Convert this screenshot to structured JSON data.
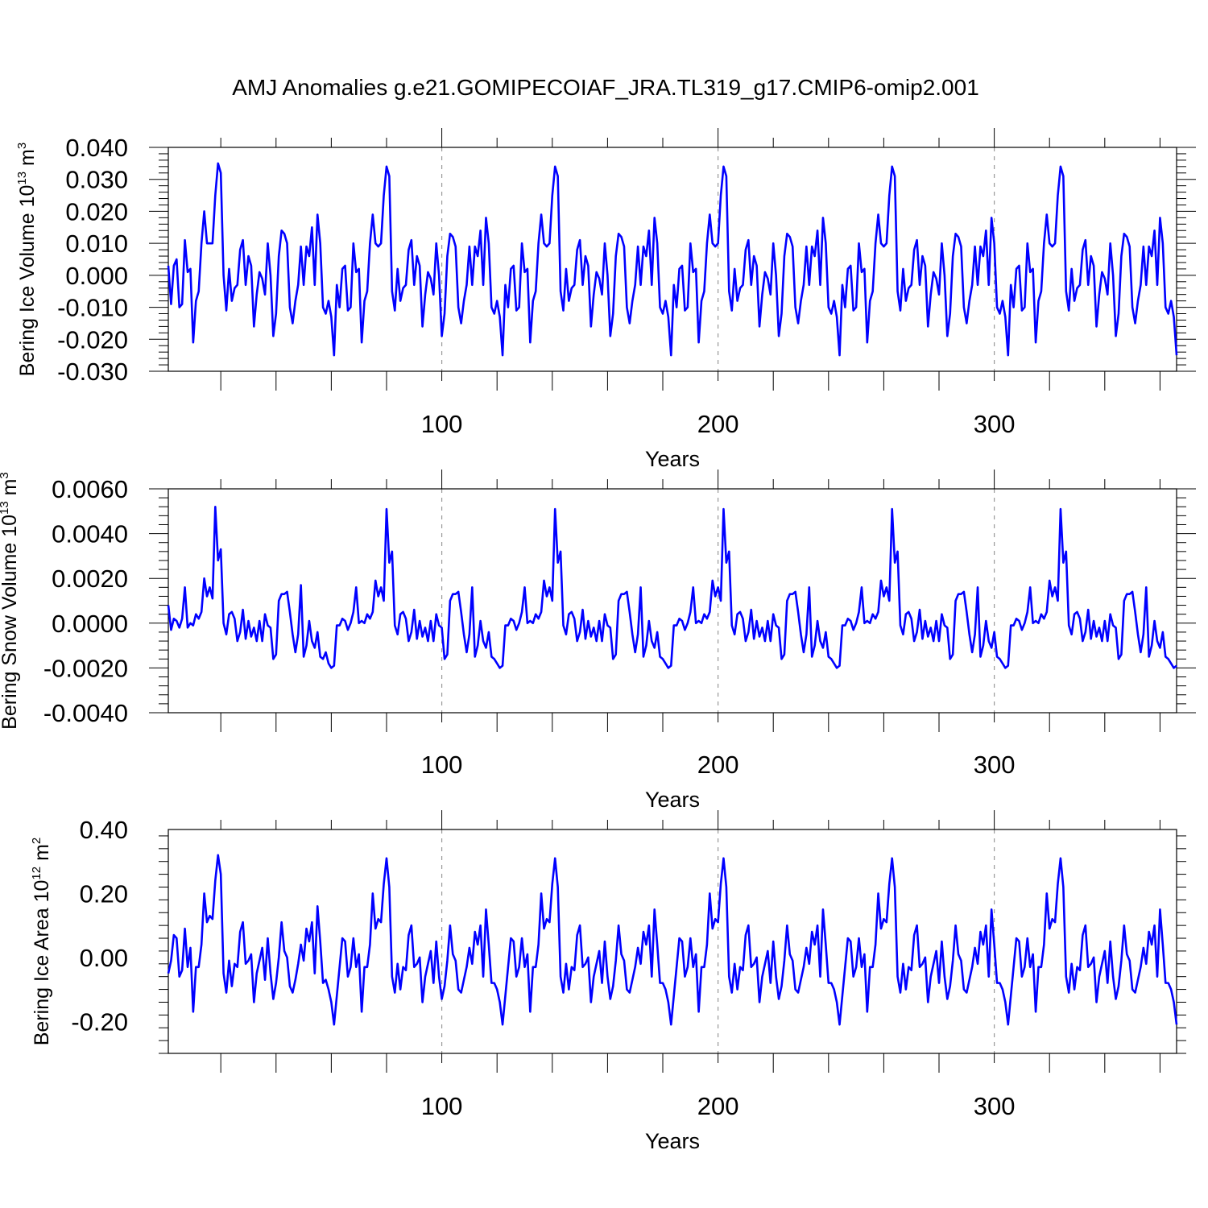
{
  "title": "AMJ Anomalies g.e21.GOMIPECOIAF_JRA.TL319_g17.CMIP6-omip2.001",
  "colors": {
    "line": "#0000ff",
    "axis": "#000000",
    "grid": "#999999"
  },
  "chart_data": [
    {
      "type": "line",
      "ylabel_prefix": "Bering Ice Volume 10",
      "ylabel_exp": "13",
      "ylabel_unit": " m",
      "ylabel_unit_exp": "3",
      "xlabel": "Years",
      "xlim": [
        1,
        366
      ],
      "ylim": [
        -0.03,
        0.04
      ],
      "y_ticks": [
        "-0.030",
        "-0.020",
        "-0.010",
        "0.000",
        "0.010",
        "0.020",
        "0.030",
        "0.040"
      ],
      "x_ticks": [
        "100",
        "200",
        "300"
      ],
      "cycle_start": [
        0.003,
        -0.009,
        0.003,
        0.005,
        -0.01,
        -0.009,
        0.011,
        0.001,
        0.002,
        -0.021,
        -0.008,
        -0.005,
        0.01,
        0.02,
        0.01,
        0.01,
        0.01,
        0.025,
        0.035,
        0.032,
        0.0,
        -0.011,
        0.002,
        -0.008,
        -0.004,
        -0.003,
        0.008,
        0.011,
        -0.003,
        0.006,
        0.003,
        -0.016,
        -0.006,
        0.001,
        -0.001,
        -0.006,
        0.01,
        0.0,
        -0.019,
        -0.012,
        0.006,
        0.014,
        0.013,
        0.01,
        -0.01,
        -0.015,
        -0.008,
        -0.003,
        0.009,
        -0.003,
        0.009,
        0.006,
        0.015,
        -0.003,
        0.019,
        0.01,
        -0.01,
        -0.012
      ],
      "cycle": [
        -0.008,
        -0.013,
        -0.025,
        -0.003,
        -0.01,
        0.002,
        0.003,
        -0.011,
        -0.01,
        0.01,
        0.001,
        0.002,
        -0.021,
        -0.008,
        -0.005,
        0.01,
        0.019,
        0.01,
        0.009,
        0.01,
        0.025,
        0.034,
        0.031,
        -0.005,
        -0.011,
        0.002,
        -0.008,
        -0.004,
        -0.003,
        0.008,
        0.011,
        -0.003,
        0.006,
        0.003,
        -0.016,
        -0.006,
        0.001,
        -0.001,
        -0.006,
        0.01,
        0.0,
        -0.019,
        -0.012,
        0.006,
        0.013,
        0.012,
        0.009,
        -0.01,
        -0.015,
        -0.008,
        -0.003,
        0.009,
        -0.003,
        0.009,
        0.006,
        0.014,
        -0.003,
        0.018,
        0.01,
        -0.01,
        -0.012
      ]
    },
    {
      "type": "line",
      "ylabel_prefix": "Bering Snow Volume 10",
      "ylabel_exp": "13",
      "ylabel_unit": " m",
      "ylabel_unit_exp": "3",
      "xlabel": "Years",
      "xlim": [
        1,
        366
      ],
      "ylim": [
        -0.004,
        0.006
      ],
      "y_ticks": [
        "-0.0040",
        "-0.0020",
        "0.0000",
        "0.0020",
        "0.0040",
        "0.0060"
      ],
      "x_ticks": [
        "100",
        "200",
        "300"
      ],
      "cycle_start": [
        0.0008,
        -0.0003,
        0.0002,
        0.0001,
        -0.0002,
        0.0002,
        0.0016,
        -0.0002,
        0.0,
        -0.0001,
        0.0004,
        0.0002,
        0.0005,
        0.002,
        0.0012,
        0.0016,
        0.0011,
        0.0052,
        0.0028,
        0.0033,
        0.0,
        -0.0005,
        0.0004,
        0.0005,
        0.0002,
        -0.0008,
        -0.0004,
        0.0006,
        -0.0007,
        0.0001,
        -0.0006,
        -0.0002,
        -0.0008,
        0.0001,
        -0.0008,
        0.0004,
        -0.0001,
        -0.0002,
        -0.0016,
        -0.0014,
        0.001,
        0.0013,
        0.0013,
        0.0014,
        0.0005,
        -0.0005,
        -0.0013,
        -0.0005,
        0.0017,
        -0.0015,
        -0.001,
        0.0001,
        -0.0008,
        -0.0011,
        -0.0004,
        -0.0015,
        -0.0016,
        -0.0013
      ],
      "cycle": [
        -0.0018,
        -0.002,
        -0.0019,
        -0.0001,
        -0.0001,
        0.0002,
        0.0001,
        -0.0003,
        0.0,
        0.0005,
        0.0016,
        0.0,
        0.0001,
        0.0,
        0.0004,
        0.0002,
        0.0005,
        0.0019,
        0.0012,
        0.0016,
        0.001,
        0.0051,
        0.0027,
        0.0032,
        -0.0001,
        -0.0005,
        0.0004,
        0.0005,
        0.0002,
        -0.0008,
        -0.0004,
        0.0006,
        -0.0007,
        0.0001,
        -0.0006,
        -0.0002,
        -0.0008,
        0.0001,
        -0.0008,
        0.0004,
        -0.0001,
        -0.0002,
        -0.0016,
        -0.0014,
        0.001,
        0.0013,
        0.0013,
        0.0014,
        0.0005,
        -0.0005,
        -0.0013,
        -0.0005,
        0.0016,
        -0.0015,
        -0.001,
        0.0001,
        -0.0008,
        -0.0011,
        -0.0004,
        -0.0015,
        -0.0016
      ]
    },
    {
      "type": "line",
      "ylabel_prefix": "Bering Ice Area 10",
      "ylabel_exp": "12",
      "ylabel_unit": " m",
      "ylabel_unit_exp": "2",
      "xlabel": "Years",
      "xlim": [
        1,
        366
      ],
      "ylim": [
        -0.3,
        0.4
      ],
      "y_ticks": [
        "-0.20",
        "0.00",
        "0.20",
        "0.40"
      ],
      "x_ticks": [
        "100",
        "200",
        "300"
      ],
      "cycle_start": [
        -0.05,
        -0.01,
        0.07,
        0.06,
        -0.06,
        -0.04,
        0.09,
        -0.03,
        0.03,
        -0.17,
        -0.03,
        -0.03,
        0.04,
        0.2,
        0.11,
        0.13,
        0.12,
        0.24,
        0.32,
        0.26,
        -0.05,
        -0.11,
        -0.01,
        -0.09,
        -0.02,
        -0.03,
        0.08,
        0.11,
        -0.02,
        -0.01,
        0.01,
        -0.14,
        -0.05,
        -0.01,
        0.03,
        -0.07,
        0.06,
        -0.05,
        -0.13,
        -0.08,
        0.0,
        0.11,
        0.02,
        0.0,
        -0.09,
        -0.11,
        -0.07,
        -0.02,
        0.04,
        -0.01,
        0.09,
        0.05,
        0.11,
        -0.05,
        0.16,
        0.05,
        -0.08,
        -0.07
      ],
      "cycle": [
        -0.1,
        -0.14,
        -0.21,
        -0.12,
        -0.03,
        0.06,
        0.05,
        -0.06,
        -0.03,
        0.06,
        -0.03,
        0.01,
        -0.17,
        -0.03,
        -0.03,
        0.04,
        0.2,
        0.09,
        0.12,
        0.11,
        0.23,
        0.31,
        0.22,
        -0.06,
        -0.11,
        -0.02,
        -0.1,
        -0.03,
        -0.04,
        0.07,
        0.1,
        -0.03,
        -0.02,
        0.0,
        -0.14,
        -0.06,
        -0.02,
        0.02,
        -0.08,
        0.05,
        -0.06,
        -0.13,
        -0.09,
        -0.01,
        0.1,
        0.01,
        -0.01,
        -0.1,
        -0.11,
        -0.07,
        -0.03,
        0.03,
        -0.02,
        0.08,
        0.04,
        0.1,
        -0.06,
        0.15,
        0.04,
        -0.08,
        -0.08
      ]
    }
  ]
}
